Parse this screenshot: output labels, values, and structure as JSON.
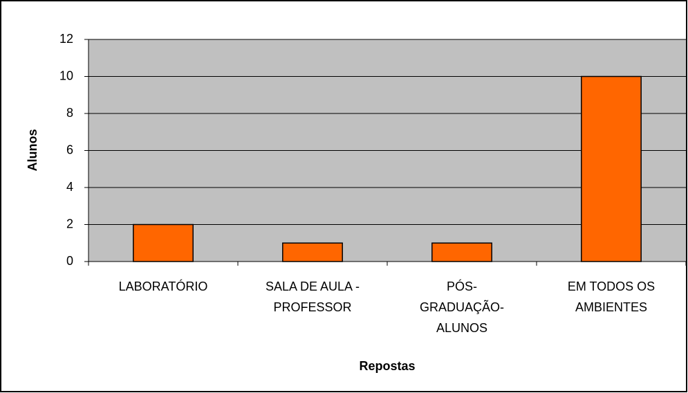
{
  "chart_data": {
    "type": "bar",
    "categories": [
      [
        "LABORATÓRIO"
      ],
      [
        "SALA DE AULA -",
        "PROFESSOR"
      ],
      [
        "PÓS-",
        "GRADUAÇÃO-",
        "ALUNOS"
      ],
      [
        "EM TODOS OS",
        "AMBIENTES"
      ]
    ],
    "values": [
      2,
      1,
      1,
      10
    ],
    "color": "#ff6600",
    "plot_background": "#c0c0c0",
    "ylim": [
      0,
      12
    ],
    "yticks": [
      0,
      2,
      4,
      6,
      8,
      10,
      12
    ],
    "grid": true,
    "y_label": "Alunos",
    "x_label": "Repostas"
  }
}
